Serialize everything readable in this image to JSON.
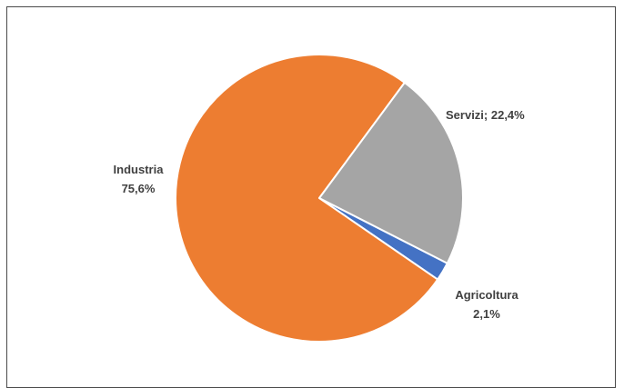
{
  "chart_data": {
    "type": "pie",
    "title": "",
    "slices": [
      {
        "label": "Agricoltura",
        "value": 2.1,
        "value_text": "2,1%",
        "color": "#4472C4"
      },
      {
        "label": "Industria",
        "value": 75.6,
        "value_text": "75,6%",
        "color": "#ED7D31"
      },
      {
        "label": "Servizi",
        "value": 22.4,
        "value_text": "22,4%",
        "color": "#A5A5A5"
      }
    ],
    "data_labels": {
      "agricoltura_line1": "Agricoltura",
      "agricoltura_line2": "2,1%",
      "industria_line1": "Industria",
      "industria_line2": "75,6%",
      "servizi": "Servizi; 22,4%"
    },
    "legend": "none"
  }
}
